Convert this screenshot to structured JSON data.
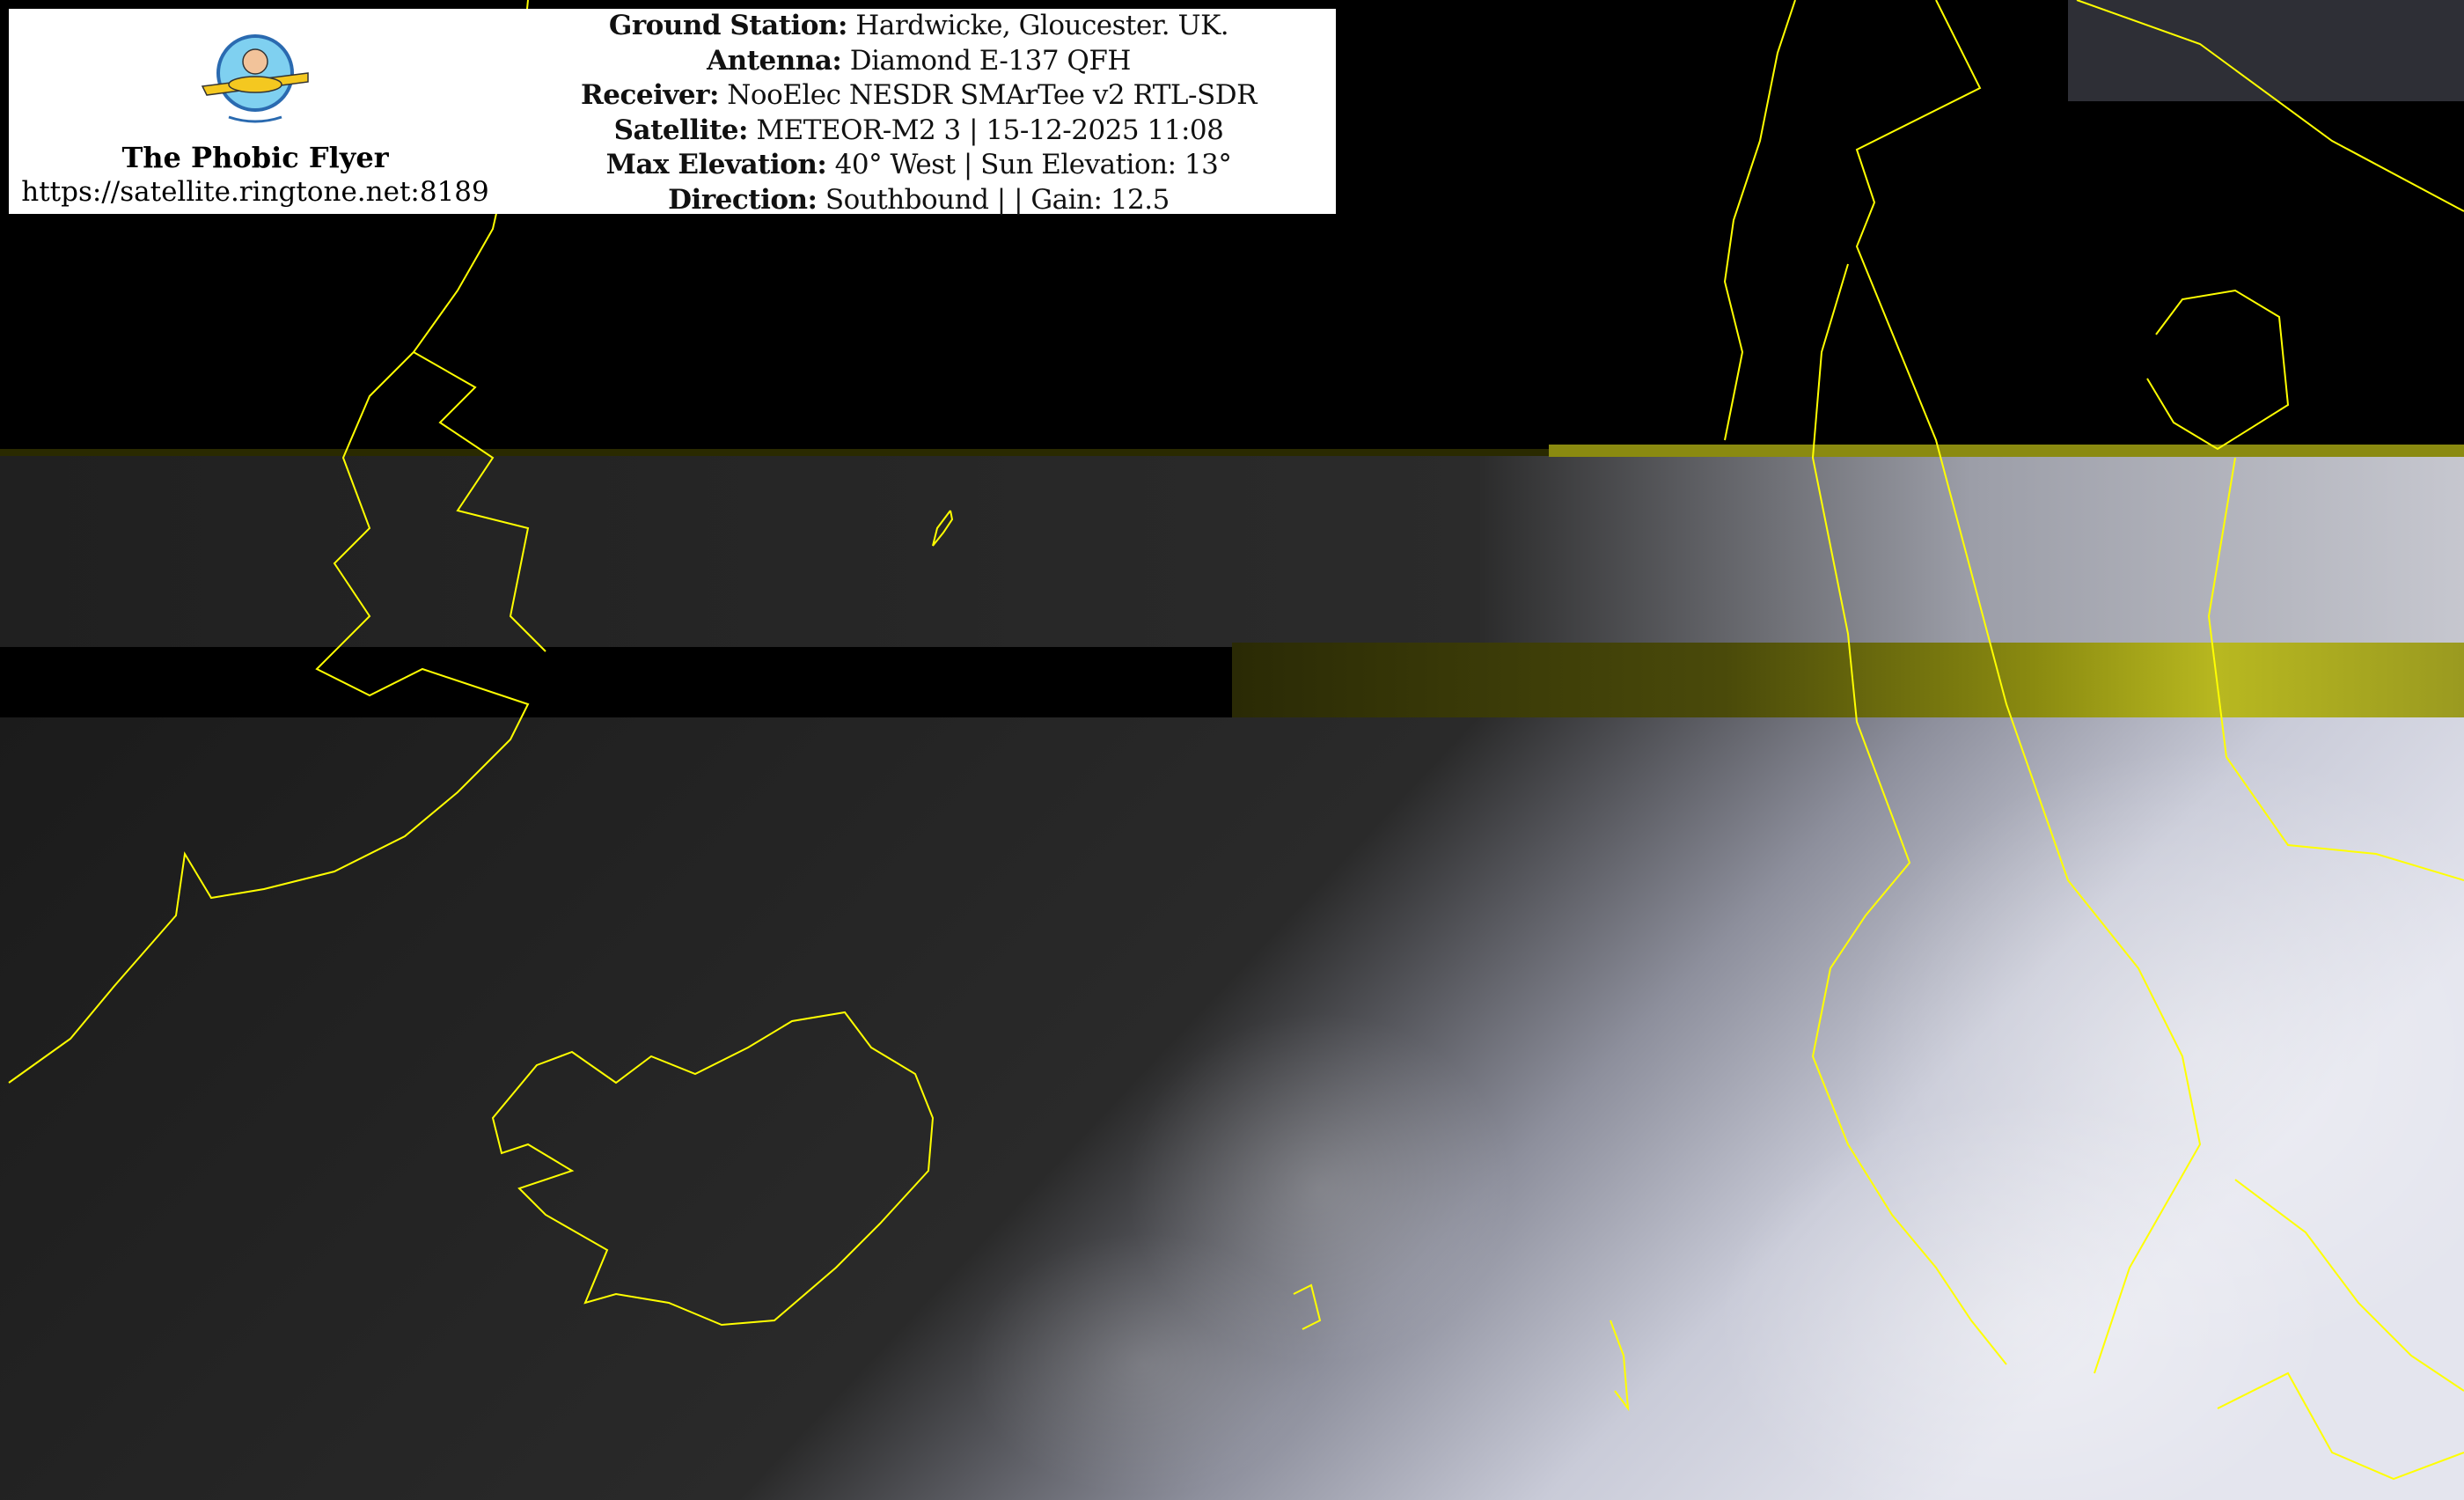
{
  "brand": {
    "name": "The Phobic Flyer",
    "url": "https://satellite.ringtone.net:8189",
    "logo_text": "The Phobic Flyer"
  },
  "info": [
    {
      "label": "Ground Station:",
      "value": " Hardwicke, Gloucester. UK."
    },
    {
      "label": "Antenna:",
      "value": " Diamond E-137 QFH"
    },
    {
      "label": "Receiver:",
      "value": " NooElec NESDR SMArTee v2 RTL-SDR"
    },
    {
      "label": "Satellite:",
      "value": " METEOR-M2 3 | 15-12-2025 11:08"
    },
    {
      "label": "Max Elevation:",
      "value": " 40° West | Sun Elevation: 13°"
    },
    {
      "label": "Direction:",
      "value": " Southbound | | Gain: 12.5"
    }
  ],
  "colors": {
    "coastline": "#ffff00",
    "overlay_bg": "#ffffff",
    "ocean": "#1a1a1a",
    "cloud": "#d8dae8"
  }
}
